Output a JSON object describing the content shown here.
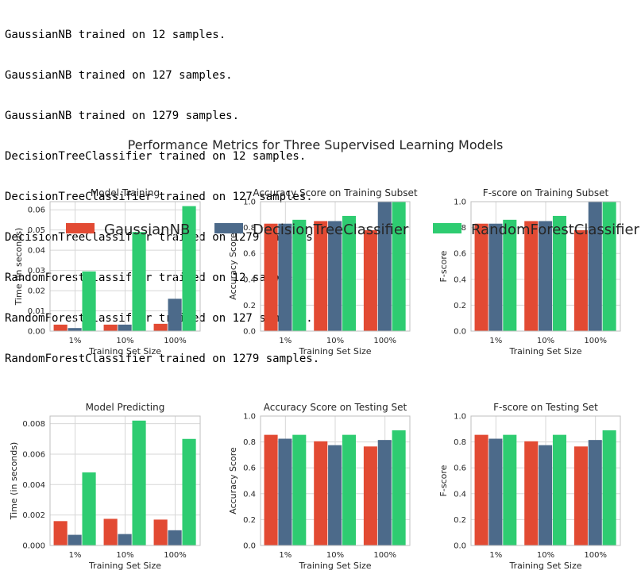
{
  "console": {
    "lines": [
      "GaussianNB trained on 12 samples.",
      "GaussianNB trained on 127 samples.",
      "GaussianNB trained on 1279 samples.",
      "DecisionTreeClassifier trained on 12 samples.",
      "DecisionTreeClassifier trained on 127 samples.",
      "DecisionTreeClassifier trained on 1279 samples.",
      "RandomForestClassifier trained on 12 samples.",
      "RandomForestClassifier trained on 127 samples.",
      "RandomForestClassifier trained on 1279 samples."
    ]
  },
  "figure": {
    "suptitle": "Performance Metrics for Three Supervised Learning Models",
    "legend": [
      {
        "name": "GaussianNB",
        "color": "#e24a33"
      },
      {
        "name": "DecisionTreeClassifier",
        "color": "#4c6a8a"
      },
      {
        "name": "RandomForestClassifier",
        "color": "#2ecc71"
      }
    ]
  },
  "chart_data": [
    {
      "type": "bar",
      "title": "Model Training",
      "xlabel": "Training Set Size",
      "ylabel": "Time (in seconds)",
      "categories": [
        "1%",
        "10%",
        "100%"
      ],
      "ylim": [
        0,
        0.064
      ],
      "yticks": [
        0,
        0.01,
        0.02,
        0.03,
        0.04,
        0.05,
        0.06
      ],
      "ytick_labels": [
        "0.00",
        "0.01",
        "0.02",
        "0.03",
        "0.04",
        "0.05",
        "0.06"
      ],
      "series": [
        {
          "name": "GaussianNB",
          "values": [
            0.0032,
            0.0032,
            0.0036
          ]
        },
        {
          "name": "DecisionTreeClassifier",
          "values": [
            0.0015,
            0.0032,
            0.016
          ]
        },
        {
          "name": "RandomForestClassifier",
          "values": [
            0.0295,
            0.049,
            0.0618
          ]
        }
      ]
    },
    {
      "type": "bar",
      "title": "Accuracy Score on Training Subset",
      "xlabel": "Training Set Size",
      "ylabel": "Accuracy Score",
      "categories": [
        "1%",
        "10%",
        "100%"
      ],
      "ylim": [
        0,
        1.0
      ],
      "yticks": [
        0,
        0.2,
        0.4,
        0.6,
        0.8,
        1.0
      ],
      "ytick_labels": [
        "0.0",
        "0.2",
        "0.4",
        "0.6",
        "0.8",
        "1.0"
      ],
      "series": [
        {
          "name": "GaussianNB",
          "values": [
            0.83,
            0.85,
            0.78
          ]
        },
        {
          "name": "DecisionTreeClassifier",
          "values": [
            0.83,
            0.85,
            1.0
          ]
        },
        {
          "name": "RandomForestClassifier",
          "values": [
            0.86,
            0.89,
            1.0
          ]
        }
      ]
    },
    {
      "type": "bar",
      "title": "F-score on Training Subset",
      "xlabel": "Training Set Size",
      "ylabel": "F-score",
      "categories": [
        "1%",
        "10%",
        "100%"
      ],
      "ylim": [
        0,
        1.0
      ],
      "yticks": [
        0,
        0.2,
        0.4,
        0.6,
        0.8,
        1.0
      ],
      "ytick_labels": [
        "0.0",
        "0.2",
        "0.4",
        "0.6",
        "0.8",
        "1.0"
      ],
      "series": [
        {
          "name": "GaussianNB",
          "values": [
            0.83,
            0.85,
            0.78
          ]
        },
        {
          "name": "DecisionTreeClassifier",
          "values": [
            0.83,
            0.85,
            1.0
          ]
        },
        {
          "name": "RandomForestClassifier",
          "values": [
            0.86,
            0.89,
            1.0
          ]
        }
      ]
    },
    {
      "type": "bar",
      "title": "Model Predicting",
      "xlabel": "Training Set Size",
      "ylabel": "Time (in seconds)",
      "categories": [
        "1%",
        "10%",
        "100%"
      ],
      "ylim": [
        0,
        0.0085
      ],
      "yticks": [
        0,
        0.002,
        0.004,
        0.006,
        0.008
      ],
      "ytick_labels": [
        "0.000",
        "0.002",
        "0.004",
        "0.006",
        "0.008"
      ],
      "series": [
        {
          "name": "GaussianNB",
          "values": [
            0.0016,
            0.00175,
            0.0017
          ]
        },
        {
          "name": "DecisionTreeClassifier",
          "values": [
            0.0007,
            0.00075,
            0.001
          ]
        },
        {
          "name": "RandomForestClassifier",
          "values": [
            0.0048,
            0.0082,
            0.007
          ]
        }
      ]
    },
    {
      "type": "bar",
      "title": "Accuracy Score on Testing Set",
      "xlabel": "Training Set Size",
      "ylabel": "Accuracy Score",
      "categories": [
        "1%",
        "10%",
        "100%"
      ],
      "ylim": [
        0,
        1.0
      ],
      "yticks": [
        0,
        0.2,
        0.4,
        0.6,
        0.8,
        1.0
      ],
      "ytick_labels": [
        "0.0",
        "0.2",
        "0.4",
        "0.6",
        "0.8",
        "1.0"
      ],
      "series": [
        {
          "name": "GaussianNB",
          "values": [
            0.855,
            0.805,
            0.765
          ]
        },
        {
          "name": "DecisionTreeClassifier",
          "values": [
            0.825,
            0.775,
            0.815
          ]
        },
        {
          "name": "RandomForestClassifier",
          "values": [
            0.855,
            0.855,
            0.89
          ]
        }
      ]
    },
    {
      "type": "bar",
      "title": "F-score on Testing Set",
      "xlabel": "Training Set Size",
      "ylabel": "F-score",
      "categories": [
        "1%",
        "10%",
        "100%"
      ],
      "ylim": [
        0,
        1.0
      ],
      "yticks": [
        0,
        0.2,
        0.4,
        0.6,
        0.8,
        1.0
      ],
      "ytick_labels": [
        "0.0",
        "0.2",
        "0.4",
        "0.6",
        "0.8",
        "1.0"
      ],
      "series": [
        {
          "name": "GaussianNB",
          "values": [
            0.855,
            0.805,
            0.765
          ]
        },
        {
          "name": "DecisionTreeClassifier",
          "values": [
            0.825,
            0.775,
            0.815
          ]
        },
        {
          "name": "RandomForestClassifier",
          "values": [
            0.855,
            0.855,
            0.89
          ]
        }
      ]
    }
  ]
}
